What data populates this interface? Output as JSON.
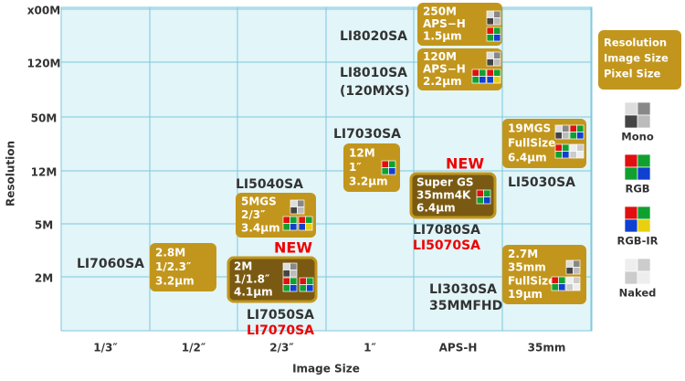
{
  "axes": {
    "y_label": "Resolution",
    "x_label": "Image Size",
    "y_ticks": [
      "x00M",
      "120M",
      "50M",
      "12M",
      "5M",
      "2M"
    ],
    "x_ticks": [
      "1/3″",
      "1/2″",
      "2/3″",
      "1″",
      "APS-H",
      "35mm"
    ]
  },
  "boxes": [
    {
      "lines": [
        "250M",
        "APS−H",
        "1.5μm"
      ]
    },
    {
      "lines": [
        "120M",
        "APS−H",
        "2.2μm"
      ]
    },
    {
      "lines": [
        "12M",
        "1″",
        "3.2μm"
      ]
    },
    {
      "lines": [
        "Super GS",
        "35mm4K",
        "6.4μm"
      ]
    },
    {
      "lines": [
        "19MGS",
        "FullSize",
        "6.4μm"
      ]
    },
    {
      "lines": [
        "5MGS",
        "2/3″",
        "3.4μm"
      ]
    },
    {
      "lines": [
        "2.8M",
        "1/2.3″",
        "3.2μm"
      ]
    },
    {
      "lines": [
        "2M",
        "1/1.8″",
        "4.1μm"
      ]
    },
    {
      "lines": [
        "2.7M",
        "35mm",
        "FullSize",
        "19μm"
      ]
    }
  ],
  "labels": [
    "LI8020SA",
    "LI8010SA",
    "(120MXS)",
    "LI7030SA",
    "LI5040SA",
    "LI7060SA",
    "LI7050SA",
    "LI7070SA",
    "LI7080SA",
    "LI5070SA",
    "LI5030SA",
    "LI3030SA",
    "35MMFHD"
  ],
  "new_badges": [
    "NEW",
    "NEW"
  ],
  "legend": {
    "key": [
      "Resolution",
      "Image Size",
      "Pixel Size"
    ],
    "items": [
      "Mono",
      "RGB",
      "RGB-IR",
      "Naked"
    ]
  }
}
